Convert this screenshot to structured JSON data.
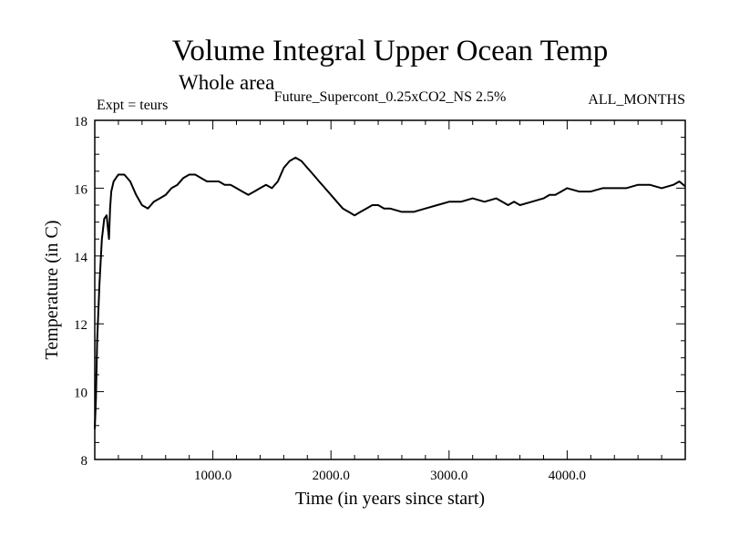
{
  "chart_data": {
    "type": "line",
    "title": "Volume Integral Upper Ocean Temp",
    "subtitle": "Whole area",
    "annotations": {
      "left": "Expt = teurs",
      "center": "Future_Supercont_0.25xCO2_NS 2.5%",
      "right": "ALL_MONTHS"
    },
    "xlabel": "Time (in years since start)",
    "ylabel": "Temperature (in C)",
    "xlim": [
      0,
      5000
    ],
    "ylim": [
      8,
      18
    ],
    "xticks": [
      1000,
      2000,
      3000,
      4000
    ],
    "xtick_labels": [
      "1000.0",
      "2000.0",
      "3000.0",
      "4000.0"
    ],
    "yticks": [
      8,
      10,
      12,
      14,
      16,
      18
    ],
    "ytick_labels": [
      "8",
      "10",
      "12",
      "14",
      "16",
      "18"
    ],
    "grid": false,
    "series": [
      {
        "x": [
          0,
          10,
          20,
          40,
          60,
          80,
          100,
          120,
          130,
          140,
          160,
          180,
          200,
          250,
          300,
          350,
          400,
          450,
          500,
          550,
          600,
          650,
          700,
          750,
          800,
          850,
          900,
          950,
          1000,
          1050,
          1100,
          1150,
          1200,
          1250,
          1300,
          1350,
          1400,
          1450,
          1500,
          1550,
          1600,
          1650,
          1700,
          1750,
          1800,
          1850,
          1900,
          1950,
          2000,
          2050,
          2100,
          2150,
          2200,
          2250,
          2300,
          2350,
          2400,
          2450,
          2500,
          2600,
          2700,
          2800,
          2900,
          3000,
          3100,
          3200,
          3300,
          3400,
          3450,
          3500,
          3550,
          3600,
          3700,
          3800,
          3850,
          3900,
          3950,
          4000,
          4100,
          4200,
          4300,
          4400,
          4500,
          4600,
          4700,
          4800,
          4900,
          4950,
          5000
        ],
        "y": [
          8.9,
          9.8,
          11.5,
          13.2,
          14.5,
          15.1,
          15.2,
          14.5,
          15.4,
          15.9,
          16.2,
          16.3,
          16.4,
          16.4,
          16.2,
          15.8,
          15.5,
          15.4,
          15.6,
          15.7,
          15.8,
          16.0,
          16.1,
          16.3,
          16.4,
          16.4,
          16.3,
          16.2,
          16.2,
          16.2,
          16.1,
          16.1,
          16.0,
          15.9,
          15.8,
          15.9,
          16.0,
          16.1,
          16.0,
          16.2,
          16.6,
          16.8,
          16.9,
          16.8,
          16.6,
          16.4,
          16.2,
          16.0,
          15.8,
          15.6,
          15.4,
          15.3,
          15.2,
          15.3,
          15.4,
          15.5,
          15.5,
          15.4,
          15.4,
          15.3,
          15.3,
          15.4,
          15.5,
          15.6,
          15.6,
          15.7,
          15.6,
          15.7,
          15.6,
          15.5,
          15.6,
          15.5,
          15.6,
          15.7,
          15.8,
          15.8,
          15.9,
          16.0,
          15.9,
          15.9,
          16.0,
          16.0,
          16.0,
          16.1,
          16.1,
          16.0,
          16.1,
          16.2,
          16.05
        ]
      }
    ]
  }
}
